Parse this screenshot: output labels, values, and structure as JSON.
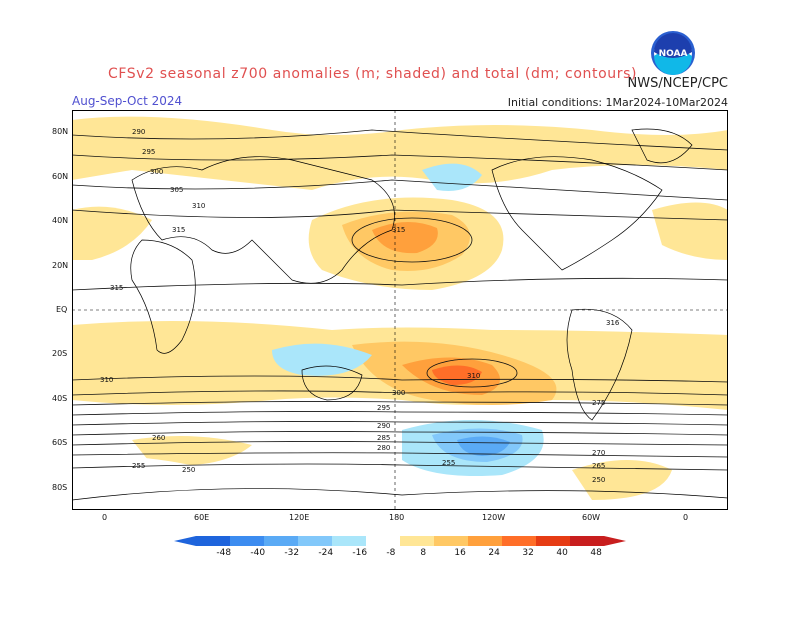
{
  "header": {
    "title": "CFSv2 seasonal z700 anomalies (m; shaded) and total (dm; contours)",
    "season": "Aug-Sep-Oct 2024",
    "initial_conditions": "Initial conditions: 1Mar2024-10Mar2024",
    "agency": "NWS/NCEP/CPC",
    "logo_text": "NOAA"
  },
  "map": {
    "lat_labels": [
      "80N",
      "60N",
      "40N",
      "20N",
      "EQ",
      "20S",
      "40S",
      "60S",
      "80S"
    ],
    "lon_labels": [
      "0",
      "60E",
      "120E",
      "180",
      "120W",
      "60W",
      "0"
    ],
    "contour_labels": [
      "290",
      "295",
      "300",
      "305",
      "310",
      "315",
      "316",
      "310",
      "300",
      "295",
      "290",
      "285",
      "280",
      "275",
      "270",
      "265",
      "260",
      "255",
      "250"
    ]
  },
  "colorbar": {
    "ticks": [
      "-48",
      "-40",
      "-32",
      "-24",
      "-16",
      "-8",
      "8",
      "16",
      "24",
      "32",
      "40",
      "48"
    ],
    "colors": [
      "#1e64dc",
      "#3c8cf0",
      "#5aaaf5",
      "#82c8fa",
      "#aae6fa",
      "#ffffff",
      "#ffe696",
      "#ffc864",
      "#ffa03c",
      "#ff6e28",
      "#e63c14",
      "#c81e1e"
    ]
  }
}
